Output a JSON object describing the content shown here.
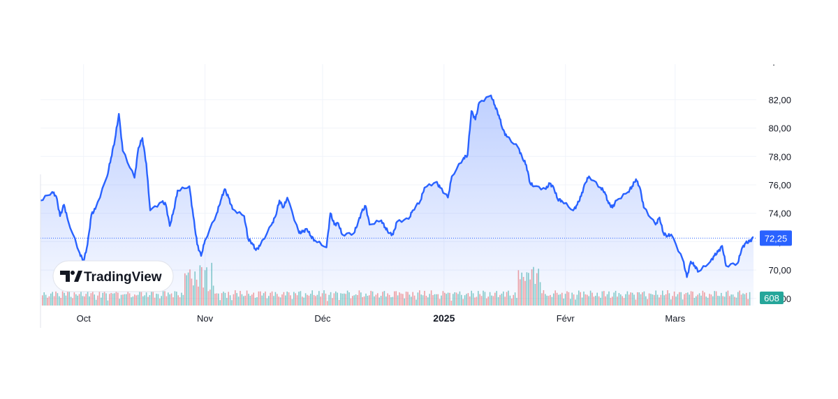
{
  "chart_data": {
    "type": "line",
    "title": "",
    "xlabel": "",
    "ylabel": "",
    "x_ticks": [
      "Oct",
      "Nov",
      "Déc",
      "2025",
      "Févr",
      "Mars"
    ],
    "y_ticks": [
      "82,00",
      "80,00",
      "78,00",
      "76,00",
      "74,00",
      "72,00",
      "70,00",
      "68,00"
    ],
    "ylim": [
      67.5,
      84.5
    ],
    "grid": true,
    "series": [
      {
        "color": "#2962ff",
        "x": [
          "2024-09-20",
          "2024-09-23",
          "2024-09-24",
          "2024-09-25",
          "2024-09-26",
          "2024-09-27",
          "2024-09-30",
          "2024-10-01",
          "2024-10-02",
          "2024-10-03",
          "2024-10-04",
          "2024-10-07",
          "2024-10-08",
          "2024-10-09",
          "2024-10-10",
          "2024-10-11",
          "2024-10-14",
          "2024-10-15",
          "2024-10-16",
          "2024-10-17",
          "2024-10-18",
          "2024-10-21",
          "2024-10-22",
          "2024-10-23",
          "2024-10-24",
          "2024-10-25",
          "2024-10-28",
          "2024-10-29",
          "2024-10-30",
          "2024-10-31",
          "2024-11-01",
          "2024-11-04",
          "2024-11-05",
          "2024-11-06",
          "2024-11-07",
          "2024-11-08",
          "2024-11-11",
          "2024-11-12",
          "2024-11-13",
          "2024-11-14",
          "2024-11-15",
          "2024-11-18",
          "2024-11-19",
          "2024-11-20",
          "2024-11-21",
          "2024-11-22",
          "2024-11-25",
          "2024-11-26",
          "2024-11-27",
          "2024-11-28",
          "2024-11-29",
          "2024-12-02",
          "2024-12-03",
          "2024-12-04",
          "2024-12-05",
          "2024-12-06",
          "2024-12-09",
          "2024-12-10",
          "2024-12-11",
          "2024-12-12",
          "2024-12-13",
          "2024-12-16",
          "2024-12-17",
          "2024-12-18",
          "2024-12-19",
          "2024-12-20",
          "2024-12-23",
          "2024-12-24",
          "2024-12-26",
          "2024-12-27",
          "2024-12-30",
          "2024-12-31",
          "2025-01-02",
          "2025-01-03",
          "2025-01-06",
          "2025-01-07",
          "2025-01-08",
          "2025-01-09",
          "2025-01-10",
          "2025-01-13",
          "2025-01-14",
          "2025-01-15",
          "2025-01-16",
          "2025-01-17",
          "2025-01-20",
          "2025-01-21",
          "2025-01-22",
          "2025-01-23",
          "2025-01-24",
          "2025-01-27",
          "2025-01-28",
          "2025-01-29",
          "2025-01-30",
          "2025-01-31",
          "2025-02-03",
          "2025-02-04",
          "2025-02-05",
          "2025-02-06",
          "2025-02-07",
          "2025-02-10",
          "2025-02-11",
          "2025-02-12",
          "2025-02-13",
          "2025-02-14",
          "2025-02-17",
          "2025-02-18",
          "2025-02-19",
          "2025-02-20",
          "2025-02-21",
          "2025-02-24",
          "2025-02-25",
          "2025-02-26",
          "2025-02-27",
          "2025-02-28",
          "2025-03-03",
          "2025-03-04",
          "2025-03-05",
          "2025-03-06",
          "2025-03-07",
          "2025-03-10",
          "2025-03-11",
          "2025-03-12",
          "2025-03-13",
          "2025-03-14",
          "2025-03-17",
          "2025-03-18",
          "2025-03-19",
          "2025-03-20",
          "2025-03-21"
        ],
        "y": [
          74.9,
          75.5,
          75.2,
          73.8,
          74.6,
          73.5,
          71.2,
          70.6,
          71.8,
          73.9,
          74.3,
          76.6,
          77.9,
          79.2,
          81.0,
          78.4,
          76.5,
          78.6,
          79.3,
          77.5,
          74.2,
          74.8,
          74.6,
          73.1,
          74.2,
          75.6,
          75.9,
          73.8,
          71.8,
          71.0,
          72.1,
          74.0,
          74.9,
          75.7,
          75.1,
          74.3,
          73.8,
          72.2,
          71.9,
          71.4,
          71.7,
          73.2,
          73.8,
          74.9,
          74.4,
          75.1,
          72.6,
          72.7,
          72.9,
          72.4,
          72.1,
          71.6,
          74.0,
          73.2,
          73.3,
          72.5,
          72.6,
          73.3,
          74.1,
          74.5,
          73.2,
          73.5,
          73.0,
          72.6,
          72.5,
          73.4,
          73.6,
          74.2,
          74.9,
          75.8,
          76.2,
          75.8,
          75.1,
          76.6,
          77.9,
          78.1,
          81.2,
          80.6,
          81.8,
          82.3,
          81.6,
          80.9,
          79.9,
          79.4,
          78.6,
          77.9,
          77.4,
          76.1,
          75.9,
          75.7,
          76.1,
          75.8,
          75.0,
          74.9,
          74.2,
          74.6,
          75.2,
          76.1,
          76.6,
          75.8,
          75.5,
          74.7,
          74.4,
          74.9,
          75.5,
          75.9,
          76.4,
          75.8,
          74.4,
          73.2,
          73.7,
          72.6,
          72.4,
          72.5,
          70.7,
          69.5,
          70.6,
          70.3,
          69.9,
          70.6,
          71.0,
          71.3,
          71.7,
          70.3,
          70.5,
          71.5,
          71.9,
          72.0,
          72.3
        ]
      }
    ],
    "last_value_label": "72,25",
    "volume_last_label": "608"
  },
  "branding": {
    "name": "TradingView"
  },
  "colors": {
    "line": "#2962ff",
    "area_top": "#2962ff",
    "volume_up": "#26a69a",
    "volume_down": "#ef5350",
    "grid": "#f0f3fa",
    "price_badge": "#2962ff",
    "volume_badge": "#26a69a"
  }
}
